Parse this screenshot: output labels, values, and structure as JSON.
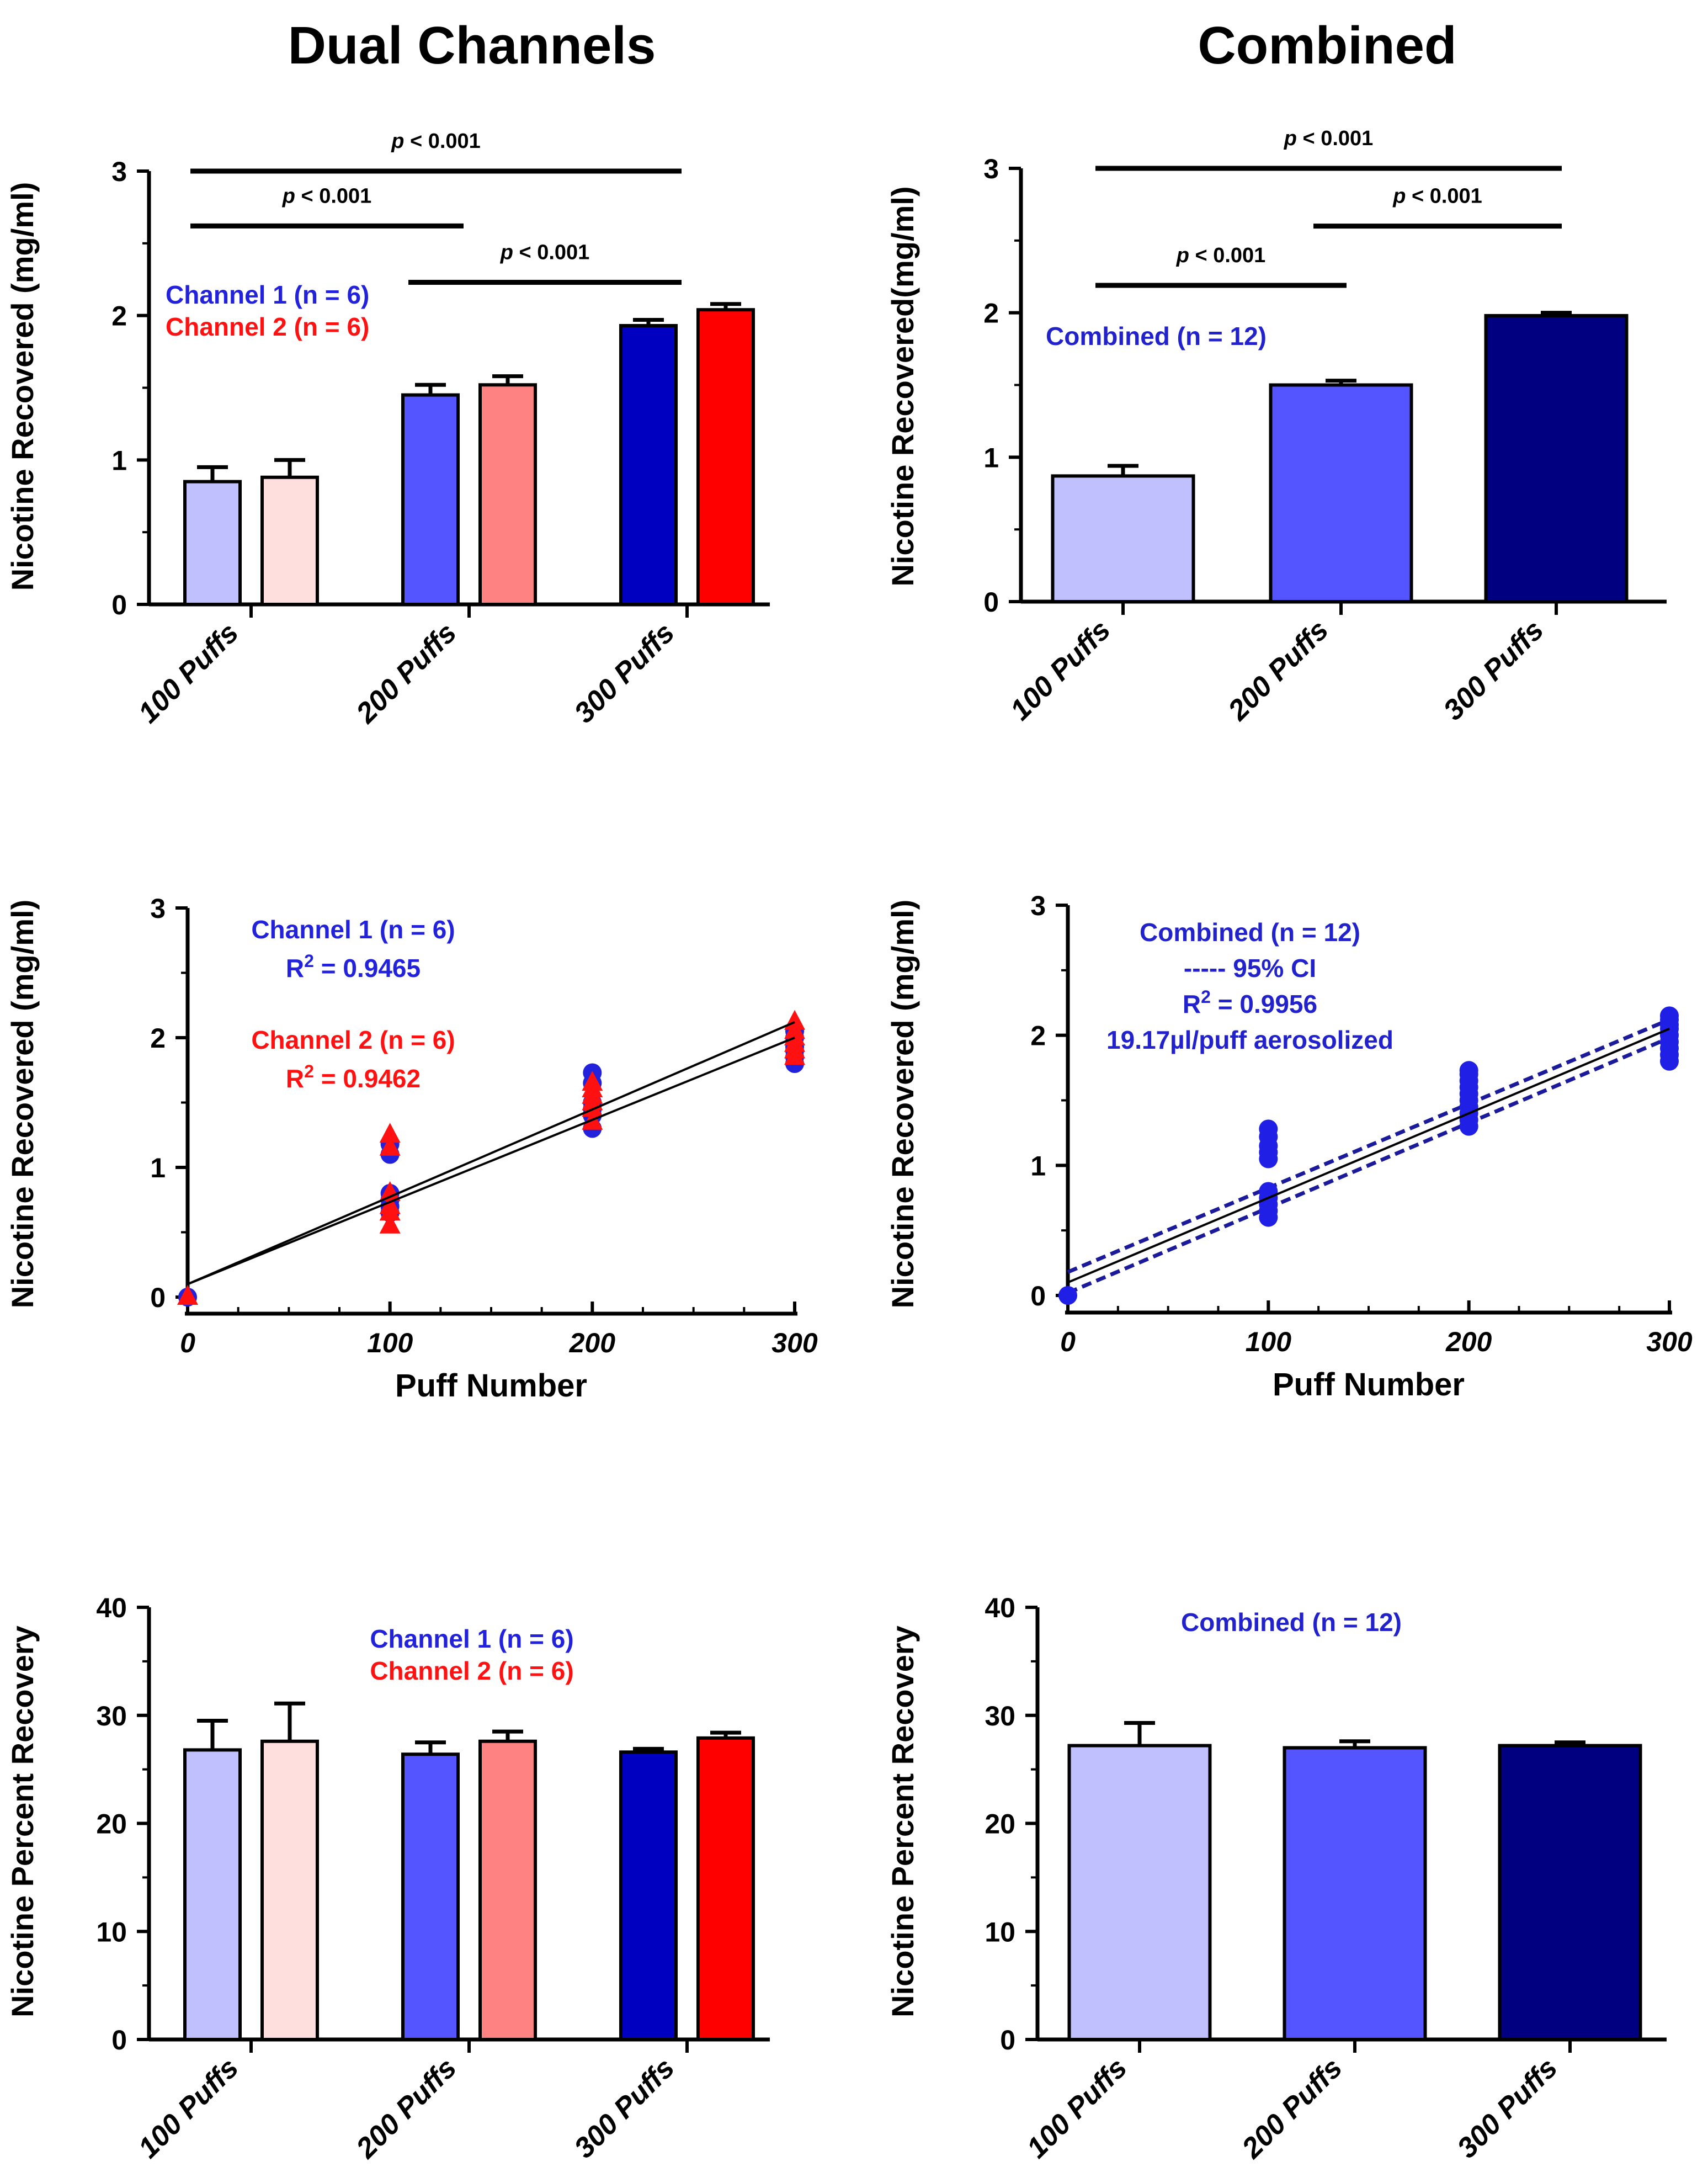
{
  "column_titles": {
    "left": "Dual Channels",
    "right": "Combined"
  },
  "colors": {
    "ch1_100": "#c0c0ff",
    "ch1_200": "#5555ff",
    "ch1_300": "#0000c0",
    "ch2_100": "#ffdede",
    "ch2_200": "#ff8282",
    "ch2_300": "#ff0000",
    "comb_100": "#c0c0ff",
    "comb_200": "#5555ff",
    "comb_300": "#000080",
    "ch1_text": "#2222dd",
    "ch2_text": "#ff1111",
    "comb_text": "#2222cc",
    "comb_points": "#1f1fe6",
    "ci_line": "#1a1a9a"
  },
  "chart_data": [
    {
      "id": "dual_bar_conc",
      "type": "bar",
      "categories": [
        "100 Puffs",
        "200 Puffs",
        "300 Puffs"
      ],
      "series": [
        {
          "name": "Channel 1 (n = 6)",
          "values": [
            0.85,
            1.45,
            1.93
          ],
          "errors": [
            0.1,
            0.07,
            0.04
          ],
          "colors": [
            "#c0c0ff",
            "#5555ff",
            "#0000c0"
          ]
        },
        {
          "name": "Channel 2 (n = 6)",
          "values": [
            0.88,
            1.52,
            2.04
          ],
          "errors": [
            0.12,
            0.06,
            0.04
          ],
          "colors": [
            "#ffdede",
            "#ff8282",
            "#ff0000"
          ]
        }
      ],
      "ylabel": "Nicotine Recovered (mg/ml)",
      "ylim": [
        0,
        3
      ],
      "yticks": [
        "0",
        "1",
        "2",
        "3"
      ],
      "legend": [
        {
          "text": "Channel 1 (n = 6)",
          "color": "#2222dd"
        },
        {
          "text": "Channel 2 (n = 6)",
          "color": "#ff1111"
        }
      ],
      "significance": [
        {
          "from": "100 Puffs",
          "to": "300 Puffs",
          "y": 3.0,
          "p": "< 0.001"
        },
        {
          "from": "100 Puffs",
          "to": "200 Puffs",
          "y": 2.62,
          "p": "< 0.001"
        },
        {
          "from": "200 Puffs",
          "to": "300 Puffs",
          "y": 2.23,
          "p": "< 0.001"
        }
      ]
    },
    {
      "id": "comb_bar_conc",
      "type": "bar",
      "categories": [
        "100 Puffs",
        "200 Puffs",
        "300 Puffs"
      ],
      "series": [
        {
          "name": "Combined (n = 12)",
          "values": [
            0.87,
            1.5,
            1.98
          ],
          "errors": [
            0.07,
            0.03,
            0.02
          ],
          "colors": [
            "#c0c0ff",
            "#5555ff",
            "#000080"
          ]
        }
      ],
      "ylabel": "Nicotine Recovered(mg/ml)",
      "ylim": [
        0,
        3
      ],
      "yticks": [
        "0",
        "1",
        "2",
        "3"
      ],
      "legend": [
        {
          "text": "Combined (n = 12)",
          "color": "#2222cc"
        }
      ],
      "significance": [
        {
          "from": "100 Puffs",
          "to": "300 Puffs",
          "y": 3.0,
          "p": "< 0.001"
        },
        {
          "from": "200 Puffs",
          "to": "300 Puffs",
          "y": 2.6,
          "p": "< 0.001"
        },
        {
          "from": "100 Puffs",
          "to": "200 Puffs",
          "y": 2.19,
          "p": "< 0.001"
        }
      ]
    },
    {
      "id": "dual_scatter",
      "type": "scatter",
      "xlabel": "Puff Number",
      "ylabel": "Nicotine Recovered (mg/ml)",
      "xlim": [
        0,
        300
      ],
      "ylim": [
        0,
        3
      ],
      "xticks": [
        "0",
        "100",
        "200",
        "300"
      ],
      "yticks": [
        "0",
        "1",
        "2",
        "3"
      ],
      "series": [
        {
          "name": "Channel 1 (n = 6)",
          "marker": "circle",
          "color": "#2222dd",
          "x": [
            0,
            100,
            100,
            100,
            100,
            100,
            100,
            200,
            200,
            200,
            200,
            200,
            200,
            300,
            300,
            300,
            300,
            300,
            300
          ],
          "y": [
            0,
            0.65,
            0.7,
            0.75,
            0.8,
            1.1,
            1.18,
            1.3,
            1.4,
            1.45,
            1.5,
            1.65,
            1.73,
            1.8,
            1.85,
            1.9,
            1.93,
            2.0,
            2.05
          ],
          "fit": [
            0.1,
            2.0
          ]
        },
        {
          "name": "Channel 2 (n = 6)",
          "marker": "triangle",
          "color": "#ff1111",
          "x": [
            0,
            100,
            100,
            100,
            100,
            100,
            100,
            200,
            200,
            200,
            200,
            200,
            200,
            300,
            300,
            300,
            300,
            300,
            300
          ],
          "y": [
            0,
            0.55,
            0.65,
            0.7,
            0.8,
            1.15,
            1.25,
            1.35,
            1.45,
            1.5,
            1.55,
            1.6,
            1.65,
            1.85,
            1.9,
            1.95,
            2.0,
            2.05,
            2.12
          ],
          "fit": [
            0.1,
            2.12
          ]
        }
      ],
      "annotations": [
        {
          "lines": [
            "Channel 1 (n = 6)",
            "R2 = 0.9465"
          ],
          "color": "#2222dd"
        },
        {
          "lines": [
            "Channel 2 (n = 6)",
            "R2 = 0.9462"
          ],
          "color": "#ff1111"
        }
      ]
    },
    {
      "id": "comb_scatter",
      "type": "scatter",
      "xlabel": "Puff Number",
      "ylabel": "Nicotine Recovered (mg/ml)",
      "xlim": [
        0,
        300
      ],
      "ylim": [
        0,
        3
      ],
      "xticks": [
        "0",
        "100",
        "200",
        "300"
      ],
      "yticks": [
        "0",
        "1",
        "2",
        "3"
      ],
      "series": [
        {
          "name": "Combined (n = 12)",
          "marker": "circle",
          "color": "#1f1fe6",
          "x": [
            0,
            100,
            100,
            100,
            100,
            100,
            100,
            100,
            100,
            100,
            100,
            200,
            200,
            200,
            200,
            200,
            200,
            200,
            200,
            200,
            200,
            300,
            300,
            300,
            300,
            300,
            300,
            300,
            300,
            300
          ],
          "y": [
            0,
            0.6,
            0.65,
            0.7,
            0.75,
            0.8,
            1.05,
            1.1,
            1.15,
            1.22,
            1.28,
            1.3,
            1.35,
            1.4,
            1.45,
            1.5,
            1.55,
            1.6,
            1.65,
            1.7,
            1.73,
            1.8,
            1.85,
            1.9,
            1.95,
            2.0,
            2.05,
            2.08,
            2.12,
            2.15
          ],
          "fit": [
            0.1,
            2.05
          ],
          "ci_upper": [
            0.18,
            2.12
          ],
          "ci_lower": [
            0.02,
            1.98
          ]
        }
      ],
      "annotations": [
        {
          "lines": [
            "Combined (n = 12)",
            "----- 95% CI",
            "R2 = 0.9956",
            "19.17µl/puff aerosolized"
          ],
          "color": "#2222cc"
        }
      ]
    },
    {
      "id": "dual_bar_pct",
      "type": "bar",
      "categories": [
        "100 Puffs",
        "200 Puffs",
        "300 Puffs"
      ],
      "series": [
        {
          "name": "Channel 1 (n = 6)",
          "values": [
            26.8,
            26.4,
            26.6
          ],
          "errors": [
            2.7,
            1.1,
            0.3
          ],
          "colors": [
            "#c0c0ff",
            "#5555ff",
            "#0000c0"
          ]
        },
        {
          "name": "Channel 2 (n = 6)",
          "values": [
            27.6,
            27.6,
            27.9
          ],
          "errors": [
            3.5,
            0.9,
            0.5
          ],
          "colors": [
            "#ffdede",
            "#ff8282",
            "#ff0000"
          ]
        }
      ],
      "ylabel": "Nicotine Percent Recovery",
      "ylim": [
        0,
        40
      ],
      "yticks": [
        "0",
        "10",
        "20",
        "30",
        "40"
      ],
      "legend": [
        {
          "text": "Channel 1 (n = 6)",
          "color": "#2222dd"
        },
        {
          "text": "Channel 2 (n = 6)",
          "color": "#ff1111"
        }
      ],
      "significance": []
    },
    {
      "id": "comb_bar_pct",
      "type": "bar",
      "categories": [
        "100 Puffs",
        "200 Puffs",
        "300 Puffs"
      ],
      "series": [
        {
          "name": "Combined (n = 12)",
          "values": [
            27.2,
            27.0,
            27.2
          ],
          "errors": [
            2.1,
            0.6,
            0.3
          ],
          "colors": [
            "#c0c0ff",
            "#5555ff",
            "#000080"
          ]
        }
      ],
      "ylabel": "Nicotine Percent Recovery",
      "ylim": [
        0,
        40
      ],
      "yticks": [
        "0",
        "10",
        "20",
        "30",
        "40"
      ],
      "legend": [
        {
          "text": "Combined (n = 12)",
          "color": "#2222cc"
        }
      ],
      "significance": []
    }
  ]
}
